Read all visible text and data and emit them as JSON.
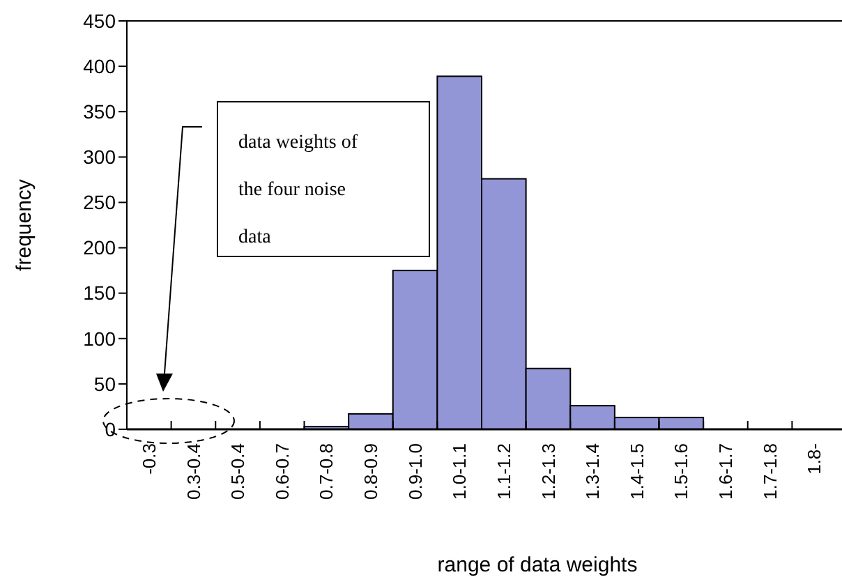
{
  "chart_data": {
    "type": "bar",
    "xlabel": "range of data weights",
    "ylabel": "frequency",
    "categories": [
      "-0.3",
      "0.3-0.4",
      "0.5-0.4",
      "0.6-0.7",
      "0.7-0.8",
      "0.8-0.9",
      "0.9-1.0",
      "1.0-1.1",
      "1.1-1.2",
      "1.2-1.3",
      "1.3-1.4",
      "1.4-1.5",
      "1.5-1.6",
      "1.6-1.7",
      "1.7-1.8",
      "1.8-"
    ],
    "values": [
      0,
      0,
      0,
      0,
      3,
      17,
      175,
      389,
      276,
      67,
      26,
      13,
      13,
      0,
      0,
      0
    ],
    "color": "#9296d6",
    "ylim": [
      0,
      450
    ],
    "yticks": [
      0,
      50,
      100,
      150,
      200,
      250,
      300,
      350,
      400,
      450
    ],
    "grid": false,
    "annotations": [
      "data weights of the four noise data"
    ]
  }
}
